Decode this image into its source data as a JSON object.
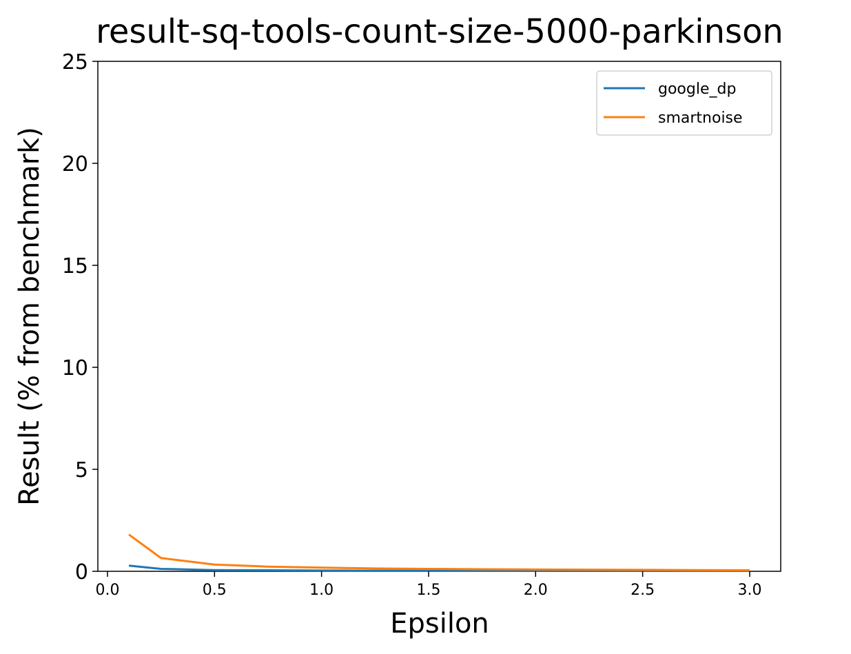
{
  "chart_data": {
    "type": "line",
    "title": "result-sq-tools-count-size-5000-parkinson",
    "xlabel": "Epsilon",
    "ylabel": "Result (% from benchmark)",
    "xlim": [
      -0.045,
      3.145
    ],
    "ylim": [
      0,
      25
    ],
    "xticks": [
      0.0,
      0.5,
      1.0,
      1.5,
      2.0,
      2.5,
      3.0
    ],
    "xtick_labels": [
      "0.0",
      "0.5",
      "1.0",
      "1.5",
      "2.0",
      "2.5",
      "3.0"
    ],
    "yticks": [
      0,
      5,
      10,
      15,
      20,
      25
    ],
    "ytick_labels": [
      "0",
      "5",
      "10",
      "15",
      "20",
      "25"
    ],
    "grid": false,
    "legend_position": "top-right",
    "series": [
      {
        "name": "google_dp",
        "color": "#1f77b4",
        "x": [
          0.1,
          0.25,
          0.5,
          0.75,
          1.0,
          1.25,
          1.5,
          1.75,
          2.0,
          2.25,
          2.5,
          2.75,
          3.0
        ],
        "y": [
          0.28,
          0.12,
          0.06,
          0.05,
          0.04,
          0.03,
          0.03,
          0.03,
          0.02,
          0.02,
          0.02,
          0.02,
          0.02
        ]
      },
      {
        "name": "smartnoise",
        "color": "#ff7f0e",
        "x": [
          0.1,
          0.25,
          0.5,
          0.75,
          1.0,
          1.25,
          1.5,
          1.75,
          2.0,
          2.25,
          2.5,
          2.75,
          3.0
        ],
        "y": [
          1.8,
          0.65,
          0.33,
          0.23,
          0.18,
          0.14,
          0.12,
          0.1,
          0.09,
          0.08,
          0.07,
          0.06,
          0.05
        ]
      }
    ]
  }
}
